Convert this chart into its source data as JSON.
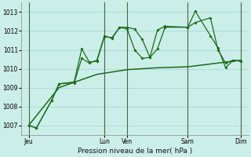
{
  "title": "Pression niveau de la mer( hPa )",
  "bg_color": "#cceee8",
  "grid_color": "#aadddd",
  "line_color": "#1a6b1a",
  "ylim": [
    1006.5,
    1013.5
  ],
  "yticks": [
    1007,
    1008,
    1009,
    1010,
    1011,
    1012,
    1013
  ],
  "xlim": [
    0,
    30
  ],
  "xtick_positions": [
    1,
    11,
    14,
    22,
    29
  ],
  "xtick_labels": [
    "Jeu",
    "Lun",
    "Ven",
    "Sam",
    "Dim"
  ],
  "vline_positions": [
    1,
    11,
    14,
    22,
    29
  ],
  "line1_x": [
    1,
    2,
    4,
    5,
    7,
    8,
    9,
    10,
    11,
    12,
    13,
    14,
    15,
    16,
    17,
    18,
    19,
    22,
    23,
    25,
    26,
    27,
    28,
    29
  ],
  "line1_y": [
    1007.0,
    1006.85,
    1008.3,
    1009.2,
    1009.3,
    1011.05,
    1010.35,
    1010.4,
    1011.7,
    1011.65,
    1012.2,
    1012.2,
    1012.1,
    1011.55,
    1010.6,
    1012.05,
    1012.25,
    1012.2,
    1013.05,
    1011.75,
    1011.1,
    1010.05,
    1010.45,
    1010.4
  ],
  "line2_x": [
    1,
    2,
    4,
    5,
    7,
    8,
    9,
    10,
    11,
    12,
    13,
    14,
    15,
    16,
    17,
    18,
    19,
    22,
    23,
    25,
    26,
    27,
    28,
    29
  ],
  "line2_y": [
    1007.0,
    1006.85,
    1008.3,
    1009.2,
    1009.25,
    1010.55,
    1010.3,
    1010.45,
    1011.75,
    1011.6,
    1012.2,
    1012.1,
    1011.0,
    1010.55,
    1010.6,
    1011.05,
    1012.2,
    1012.2,
    1012.45,
    1012.7,
    1011.0,
    1010.3,
    1010.45,
    1010.4
  ],
  "line3_x": [
    1,
    5,
    10,
    14,
    18,
    22,
    26,
    29
  ],
  "line3_y": [
    1007.0,
    1009.0,
    1009.7,
    1009.95,
    1010.05,
    1010.1,
    1010.3,
    1010.45
  ],
  "figsize": [
    3.2,
    2.0
  ],
  "dpi": 100
}
